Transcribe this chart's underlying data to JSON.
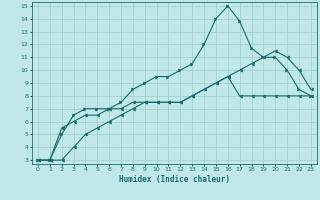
{
  "xlabel": "Humidex (Indice chaleur)",
  "bg_color": "#c0e8e8",
  "line_color": "#1a6b6b",
  "grid_color": "#a0cccc",
  "xlim": [
    -0.5,
    23.5
  ],
  "ylim": [
    2.7,
    15.3
  ],
  "xticks": [
    0,
    1,
    2,
    3,
    4,
    5,
    6,
    7,
    8,
    9,
    10,
    11,
    12,
    13,
    14,
    15,
    16,
    17,
    18,
    19,
    20,
    21,
    22,
    23
  ],
  "yticks": [
    3,
    4,
    5,
    6,
    7,
    8,
    9,
    10,
    11,
    12,
    13,
    14,
    15
  ],
  "line1_x": [
    0,
    1,
    2,
    3,
    4,
    5,
    6,
    7,
    8,
    9,
    10,
    11,
    12,
    13,
    14,
    15,
    16,
    17,
    18,
    19,
    20,
    21,
    22,
    23
  ],
  "line1_y": [
    3,
    3,
    3,
    4,
    5,
    5.5,
    6,
    6.5,
    7,
    7.5,
    7.5,
    7.5,
    7.5,
    8,
    8.5,
    9,
    9.5,
    10,
    10.5,
    11,
    11.5,
    11,
    10,
    8.5
  ],
  "line2_x": [
    0,
    1,
    2,
    3,
    4,
    5,
    6,
    7,
    8,
    9,
    10,
    11,
    12,
    13,
    14,
    15,
    16,
    17,
    18,
    19,
    20,
    21,
    22,
    23
  ],
  "line2_y": [
    3,
    3,
    5.5,
    6,
    6.5,
    6.5,
    7,
    7,
    7.5,
    7.5,
    7.5,
    7.5,
    7.5,
    8,
    8.5,
    9,
    9.5,
    8,
    8,
    8,
    8,
    8,
    8,
    8
  ],
  "line3_x": [
    0,
    1,
    2,
    3,
    4,
    5,
    6,
    7,
    8,
    9,
    10,
    11,
    12,
    13,
    14,
    15,
    16,
    17,
    18,
    19,
    20,
    21,
    22,
    23
  ],
  "line3_y": [
    3,
    3,
    5,
    6.5,
    7,
    7,
    7,
    7.5,
    8.5,
    9,
    9.5,
    9.5,
    10,
    10.5,
    12,
    14,
    15,
    13.8,
    11.7,
    11,
    11,
    10,
    8.5,
    8
  ]
}
